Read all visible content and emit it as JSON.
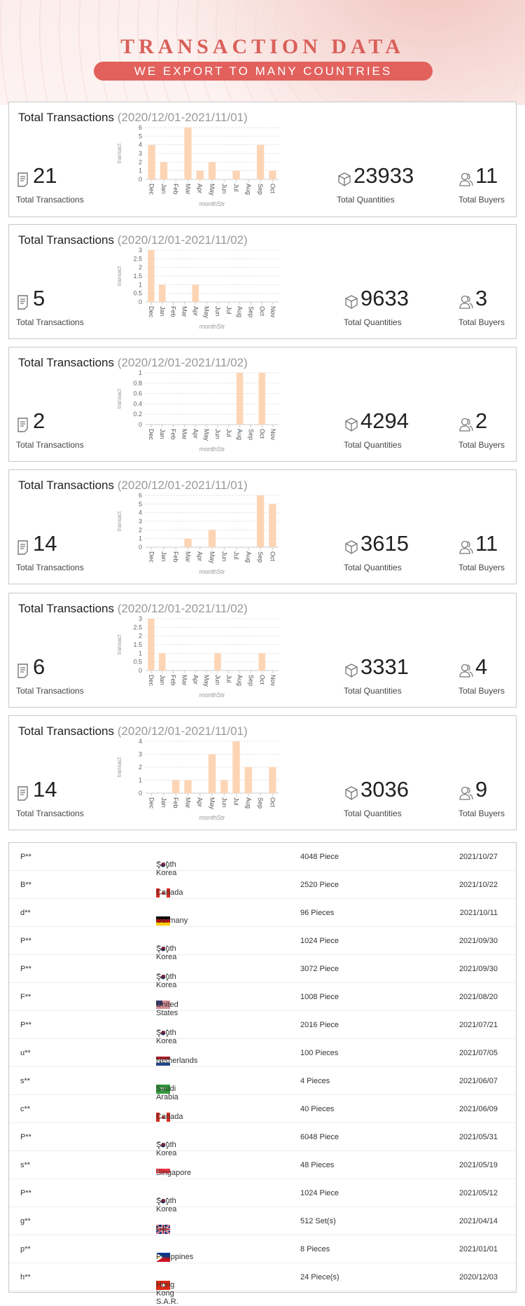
{
  "header": {
    "title": "TRANSACTION DATA",
    "subtitle": "WE EXPORT TO MANY COUNTRIES"
  },
  "labels": {
    "transactions": "Total Transactions",
    "quantities": "Total Quantities",
    "buyers": "Total Buyers",
    "card_title": "Total Transactions"
  },
  "colors": {
    "accent": "#e2615d",
    "bar": "#fdd5b5"
  },
  "cards": [
    {
      "range": "(2020/12/01-2021/11/01)",
      "transactions": "21",
      "quantities": "23933",
      "buyers": "11"
    },
    {
      "range": "(2020/12/01-2021/11/02)",
      "transactions": "5",
      "quantities": "9633",
      "buyers": "3"
    },
    {
      "range": "(2020/12/01-2021/11/02)",
      "transactions": "2",
      "quantities": "4294",
      "buyers": "2"
    },
    {
      "range": "(2020/12/01-2021/11/01)",
      "transactions": "14",
      "quantities": "3615",
      "buyers": "11"
    },
    {
      "range": "(2020/12/01-2021/11/02)",
      "transactions": "6",
      "quantities": "3331",
      "buyers": "4"
    },
    {
      "range": "(2020/12/01-2021/11/01)",
      "transactions": "14",
      "quantities": "3036",
      "buyers": "9"
    }
  ],
  "chart_data": [
    {
      "type": "bar",
      "xlabel": "monthStr",
      "ylabel": "transact",
      "categories": [
        "Dec",
        "Jan",
        "Feb",
        "Mar",
        "Apr",
        "May",
        "Jun",
        "Jul",
        "Aug",
        "Sep",
        "Oct"
      ],
      "values": [
        4,
        2,
        0,
        6,
        1,
        2,
        0,
        1,
        0,
        4,
        1
      ],
      "yticks": [
        "0",
        "1",
        "2",
        "3",
        "4",
        "5",
        "6"
      ],
      "ylim": [
        0,
        6
      ]
    },
    {
      "type": "bar",
      "xlabel": "monthStr",
      "ylabel": "transact",
      "categories": [
        "Dec",
        "Jan",
        "Feb",
        "Mar",
        "Apr",
        "May",
        "Jun",
        "Jul",
        "Aug",
        "Sep",
        "Oct",
        "Nov"
      ],
      "values": [
        3,
        1,
        0,
        0,
        1,
        0,
        0,
        0,
        0,
        0,
        0,
        0
      ],
      "yticks": [
        "0",
        "0.5",
        "1",
        "1.5",
        "2",
        "2.5",
        "3"
      ],
      "ylim": [
        0,
        3
      ]
    },
    {
      "type": "bar",
      "xlabel": "monthStr",
      "ylabel": "transact",
      "categories": [
        "Dec",
        "Jan",
        "Feb",
        "Mar",
        "Apr",
        "May",
        "Jun",
        "Jul",
        "Aug",
        "Sep",
        "Oct",
        "Nov"
      ],
      "values": [
        0,
        0,
        0,
        0,
        0,
        0,
        0,
        0,
        1,
        0,
        1,
        0
      ],
      "yticks": [
        "0",
        "0.2",
        "0.4",
        "0.6",
        "0.8",
        "1"
      ],
      "ylim": [
        0,
        1
      ]
    },
    {
      "type": "bar",
      "xlabel": "monthStr",
      "ylabel": "transact",
      "categories": [
        "Dec",
        "Jan",
        "Feb",
        "Mar",
        "Apr",
        "May",
        "Jun",
        "Jul",
        "Aug",
        "Sep",
        "Oct"
      ],
      "values": [
        0,
        0,
        0,
        1,
        0,
        2,
        0,
        0,
        0,
        6,
        5
      ],
      "yticks": [
        "0",
        "1",
        "2",
        "3",
        "4",
        "5",
        "6"
      ],
      "ylim": [
        0,
        6
      ]
    },
    {
      "type": "bar",
      "xlabel": "monthStr",
      "ylabel": "transact",
      "categories": [
        "Dec",
        "Jan",
        "Feb",
        "Mar",
        "Apr",
        "May",
        "Jun",
        "Jul",
        "Aug",
        "Sep",
        "Oct",
        "Nov"
      ],
      "values": [
        3,
        1,
        0,
        0,
        0,
        0,
        1,
        0,
        0,
        0,
        1,
        0
      ],
      "yticks": [
        "0",
        "0.5",
        "1",
        "1.5",
        "2",
        "2.5",
        "3"
      ],
      "ylim": [
        0,
        3
      ]
    },
    {
      "type": "bar",
      "xlabel": "monthStr",
      "ylabel": "transact",
      "categories": [
        "Dec",
        "Jan",
        "Feb",
        "Mar",
        "Apr",
        "May",
        "Jun",
        "Jul",
        "Aug",
        "Sep",
        "Oct"
      ],
      "values": [
        0,
        0,
        1,
        1,
        0,
        3,
        1,
        4,
        2,
        0,
        2
      ],
      "yticks": [
        "0",
        "1",
        "2",
        "3",
        "4"
      ],
      "ylim": [
        0,
        4
      ]
    }
  ],
  "table": [
    {
      "buyer": "P**",
      "country": "South Korea",
      "flag": "kr",
      "qty": "4048 Piece",
      "date": "2021/10/27"
    },
    {
      "buyer": "B**",
      "country": "Canada",
      "flag": "ca",
      "qty": "2520 Piece",
      "date": "2021/10/22"
    },
    {
      "buyer": "d**",
      "country": "Germany",
      "flag": "de",
      "qty": "96 Pieces",
      "date": "2021/10/11"
    },
    {
      "buyer": "P**",
      "country": "South Korea",
      "flag": "kr",
      "qty": "1024 Piece",
      "date": "2021/09/30"
    },
    {
      "buyer": "P**",
      "country": "South Korea",
      "flag": "kr",
      "qty": "3072 Piece",
      "date": "2021/09/30"
    },
    {
      "buyer": "F**",
      "country": "United States",
      "flag": "us",
      "qty": "1008 Piece",
      "date": "2021/08/20"
    },
    {
      "buyer": "P**",
      "country": "South Korea",
      "flag": "kr",
      "qty": "2016 Piece",
      "date": "2021/07/21"
    },
    {
      "buyer": "u**",
      "country": "Netherlands",
      "flag": "nl",
      "qty": "100 Pieces",
      "date": "2021/07/05"
    },
    {
      "buyer": "s**",
      "country": "Saudi Arabia",
      "flag": "sa",
      "qty": "4 Pieces",
      "date": "2021/06/07"
    },
    {
      "buyer": "c**",
      "country": "Canada",
      "flag": "ca",
      "qty": "40 Pieces",
      "date": "2021/06/09"
    },
    {
      "buyer": "P**",
      "country": "South Korea",
      "flag": "kr",
      "qty": "6048 Piece",
      "date": "2021/05/31"
    },
    {
      "buyer": "s**",
      "country": "Singapore",
      "flag": "sg",
      "qty": "48 Pieces",
      "date": "2021/05/19"
    },
    {
      "buyer": "P**",
      "country": "South Korea",
      "flag": "kr",
      "qty": "1024 Piece",
      "date": "2021/05/12"
    },
    {
      "buyer": "g**",
      "country": "GB",
      "flag": "gb",
      "qty": "512 Set(s)",
      "date": "2021/04/14"
    },
    {
      "buyer": "p**",
      "country": "Philippines",
      "flag": "ph",
      "qty": "8 Pieces",
      "date": "2021/01/01"
    },
    {
      "buyer": "h**",
      "country": "Hong Kong S.A.R.",
      "flag": "hk",
      "qty": "24 Piece(s)",
      "date": "2020/12/03"
    }
  ]
}
